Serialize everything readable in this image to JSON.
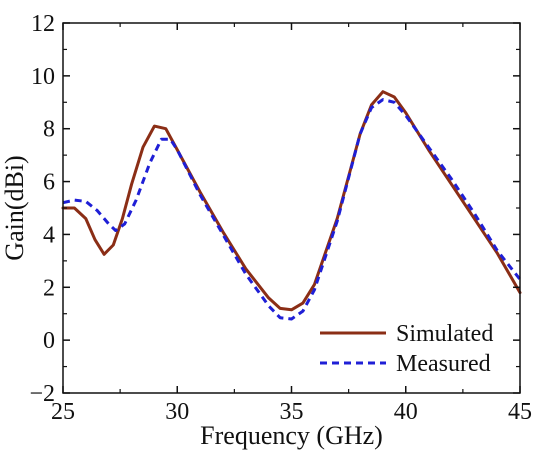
{
  "chart_data": {
    "type": "line",
    "xlabel": "Frequency (GHz)",
    "ylabel": "Gain(dBi)",
    "xlim": [
      25,
      45
    ],
    "ylim": [
      -2,
      12
    ],
    "x_ticks": [
      25,
      30,
      35,
      40,
      45
    ],
    "y_ticks": [
      -2,
      0,
      2,
      4,
      6,
      8,
      10,
      12
    ],
    "grid": false,
    "legend_position": "bottom-right",
    "series": [
      {
        "name": "Simulated",
        "color": "#8b2e16",
        "style": "solid",
        "points": [
          [
            25,
            5.0
          ],
          [
            25.5,
            5.0
          ],
          [
            26,
            4.6
          ],
          [
            26.4,
            3.8
          ],
          [
            26.8,
            3.25
          ],
          [
            27.2,
            3.6
          ],
          [
            27.6,
            4.6
          ],
          [
            28,
            5.9
          ],
          [
            28.5,
            7.3
          ],
          [
            29,
            8.1
          ],
          [
            29.5,
            8.0
          ],
          [
            30,
            7.2
          ],
          [
            31,
            5.6
          ],
          [
            32,
            4.1
          ],
          [
            33,
            2.7
          ],
          [
            34,
            1.6
          ],
          [
            34.5,
            1.2
          ],
          [
            35,
            1.15
          ],
          [
            35.5,
            1.4
          ],
          [
            36,
            2.1
          ],
          [
            37,
            4.6
          ],
          [
            38,
            7.8
          ],
          [
            38.5,
            8.9
          ],
          [
            39,
            9.4
          ],
          [
            39.5,
            9.2
          ],
          [
            40,
            8.6
          ],
          [
            41,
            7.2
          ],
          [
            42,
            5.9
          ],
          [
            43,
            4.6
          ],
          [
            44,
            3.3
          ],
          [
            45,
            1.8
          ]
        ]
      },
      {
        "name": "Measured",
        "color": "#1f1fd6",
        "style": "dashed",
        "points": [
          [
            25,
            5.2
          ],
          [
            25.5,
            5.3
          ],
          [
            26,
            5.25
          ],
          [
            26.5,
            4.9
          ],
          [
            27,
            4.4
          ],
          [
            27.3,
            4.15
          ],
          [
            27.7,
            4.4
          ],
          [
            28.2,
            5.3
          ],
          [
            28.8,
            6.7
          ],
          [
            29.3,
            7.6
          ],
          [
            29.7,
            7.6
          ],
          [
            30,
            7.2
          ],
          [
            31,
            5.5
          ],
          [
            32,
            4.0
          ],
          [
            33,
            2.5
          ],
          [
            34,
            1.3
          ],
          [
            34.5,
            0.85
          ],
          [
            35,
            0.8
          ],
          [
            35.5,
            1.1
          ],
          [
            36,
            1.9
          ],
          [
            37,
            4.5
          ],
          [
            38,
            7.8
          ],
          [
            38.5,
            8.8
          ],
          [
            39,
            9.1
          ],
          [
            39.5,
            9.0
          ],
          [
            40,
            8.5
          ],
          [
            41,
            7.3
          ],
          [
            42,
            6.1
          ],
          [
            43,
            4.8
          ],
          [
            44,
            3.4
          ],
          [
            45,
            2.3
          ]
        ]
      }
    ]
  }
}
